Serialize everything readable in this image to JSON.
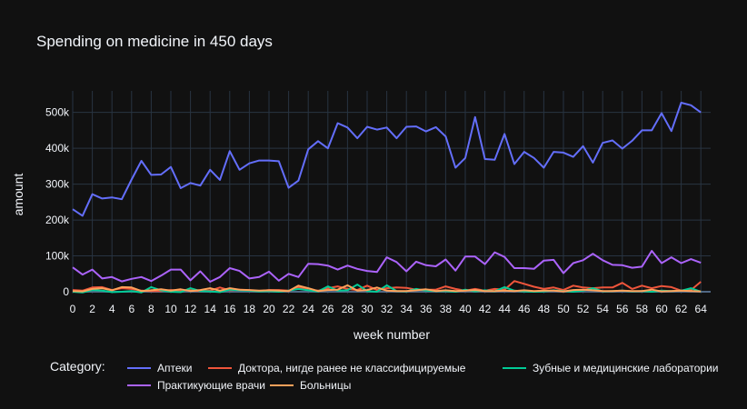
{
  "chart_data": {
    "type": "line",
    "title": "Spending on medicine in 450 days",
    "xlabel": "week number",
    "ylabel": "amount",
    "xlim": [
      0,
      65
    ],
    "ylim": [
      -5000,
      560000
    ],
    "x_ticks": [
      0,
      2,
      4,
      6,
      8,
      10,
      12,
      14,
      16,
      18,
      20,
      22,
      24,
      26,
      28,
      30,
      32,
      34,
      36,
      38,
      40,
      42,
      44,
      46,
      48,
      50,
      52,
      54,
      56,
      58,
      60,
      62,
      64
    ],
    "y_ticks": [
      {
        "value": 0,
        "label": "0"
      },
      {
        "value": 100000,
        "label": "100k"
      },
      {
        "value": 200000,
        "label": "200k"
      },
      {
        "value": 300000,
        "label": "300k"
      },
      {
        "value": 400000,
        "label": "400k"
      },
      {
        "value": 500000,
        "label": "500k"
      }
    ],
    "grid": true,
    "legend_title": "Category:",
    "legend_position": "bottom",
    "series": [
      {
        "name": "Аптеки",
        "color": "#636efa",
        "values": [
          230000,
          212000,
          272000,
          260000,
          263000,
          258000,
          313000,
          365000,
          326000,
          327000,
          348000,
          289000,
          303000,
          296000,
          340000,
          312000,
          392000,
          340000,
          358000,
          366000,
          366000,
          364000,
          290000,
          310000,
          397000,
          420000,
          400000,
          470000,
          458000,
          428000,
          460000,
          452000,
          458000,
          428000,
          460000,
          461000,
          447000,
          459000,
          433000,
          346000,
          373000,
          487000,
          370000,
          368000,
          440000,
          356000,
          390000,
          373000,
          346000,
          390000,
          388000,
          376000,
          406000,
          360000,
          415000,
          422000,
          399000,
          421000,
          450000,
          450000,
          498000,
          448000,
          527000,
          520000,
          500000
        ]
      },
      {
        "name": "Доктора, нигде ранее не классифицируемые",
        "color": "#ef553b",
        "values": [
          5000,
          3000,
          12000,
          13000,
          5000,
          10000,
          8000,
          3000,
          2000,
          2000,
          5000,
          3000,
          4000,
          2000,
          3000,
          12000,
          4000,
          6000,
          4000,
          2000,
          5000,
          5000,
          3000,
          13000,
          5000,
          3000,
          10000,
          15000,
          8000,
          5000,
          17000,
          5000,
          10000,
          12000,
          11000,
          6000,
          6000,
          6000,
          15000,
          8000,
          3000,
          8000,
          3000,
          8000,
          6000,
          30000,
          22000,
          14000,
          8000,
          12000,
          5000,
          17000,
          12000,
          10000,
          12000,
          12000,
          25000,
          8000,
          17000,
          10000,
          16000,
          13000,
          3000,
          5000,
          28000
        ]
      },
      {
        "name": "Зубные и медицинские лаборатории",
        "color": "#00cc96",
        "values": [
          0,
          -2000,
          5000,
          3000,
          -1000,
          0,
          2000,
          -2000,
          13000,
          4000,
          0,
          -1000,
          10000,
          2000,
          1000,
          -1000,
          6000,
          4000,
          3000,
          1000,
          2000,
          0,
          3000,
          8000,
          4000,
          1000,
          15000,
          3000,
          4000,
          20000,
          2000,
          0,
          18000,
          2000,
          1000,
          8000,
          3000,
          2000,
          2000,
          0,
          6000,
          1000,
          4000,
          1000,
          13000,
          3000,
          1000,
          0,
          1000,
          4000,
          2000,
          0,
          3000,
          10000,
          1000,
          2000,
          3000,
          1000,
          2000,
          0,
          3000,
          2000,
          3000,
          10000,
          0
        ]
      },
      {
        "name": "Практикующие врачи",
        "color": "#ab63fa",
        "values": [
          68000,
          48000,
          62000,
          37000,
          41000,
          29000,
          36000,
          41000,
          30000,
          45000,
          62000,
          62000,
          32000,
          57000,
          28000,
          41000,
          66000,
          58000,
          37000,
          41000,
          56000,
          31000,
          50000,
          41000,
          78000,
          77000,
          73000,
          62000,
          73000,
          64000,
          58000,
          55000,
          96000,
          83000,
          57000,
          84000,
          74000,
          71000,
          90000,
          59000,
          98000,
          98000,
          77000,
          110000,
          97000,
          66000,
          66000,
          64000,
          87000,
          89000,
          52000,
          80000,
          88000,
          106000,
          88000,
          75000,
          74000,
          67000,
          70000,
          114000,
          80000,
          96000,
          80000,
          91000,
          81000
        ]
      },
      {
        "name": "Больницы",
        "color": "#ffa15a",
        "values": [
          2000,
          1000,
          8000,
          10000,
          4000,
          13000,
          12000,
          2000,
          4000,
          7000,
          3000,
          7000,
          2000,
          5000,
          10000,
          3000,
          10000,
          6000,
          5000,
          3000,
          4000,
          3000,
          2000,
          17000,
          10000,
          2000,
          5000,
          6000,
          18000,
          3000,
          5000,
          12000,
          3000,
          2000,
          2000,
          4000,
          7000,
          2000,
          4000,
          2000,
          3000,
          5000,
          2000,
          2000,
          3000,
          2000,
          4000,
          2000,
          3000,
          3000,
          1000,
          5000,
          6000,
          4000,
          2000,
          2000,
          3000,
          2000,
          2000,
          6000,
          1000,
          2000,
          3000,
          2000,
          1000
        ]
      }
    ]
  }
}
